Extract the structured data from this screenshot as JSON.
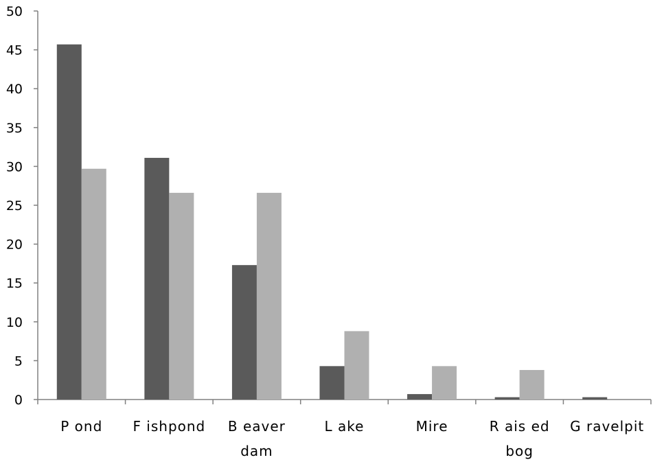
{
  "chart_data": {
    "type": "bar",
    "title": "",
    "xlabel": "",
    "ylabel": "",
    "ylim": [
      0,
      50
    ],
    "yticks": [
      0,
      5,
      10,
      15,
      20,
      25,
      30,
      35,
      40,
      45,
      50
    ],
    "grid": false,
    "legend": "none",
    "categories": [
      [
        "P ond"
      ],
      [
        "F ishpond"
      ],
      [
        "B eaver",
        "dam"
      ],
      [
        "L ake"
      ],
      [
        "Mire"
      ],
      [
        "R ais ed",
        "bog"
      ],
      [
        "G ravelpit"
      ]
    ],
    "series": [
      {
        "color": "#5a5a5a",
        "values": [
          45.7,
          31.1,
          17.3,
          4.3,
          0.7,
          0.3,
          0.3
        ]
      },
      {
        "color": "#b0b0b0",
        "values": [
          29.7,
          26.6,
          26.6,
          8.8,
          4.3,
          3.8,
          0
        ]
      }
    ]
  }
}
